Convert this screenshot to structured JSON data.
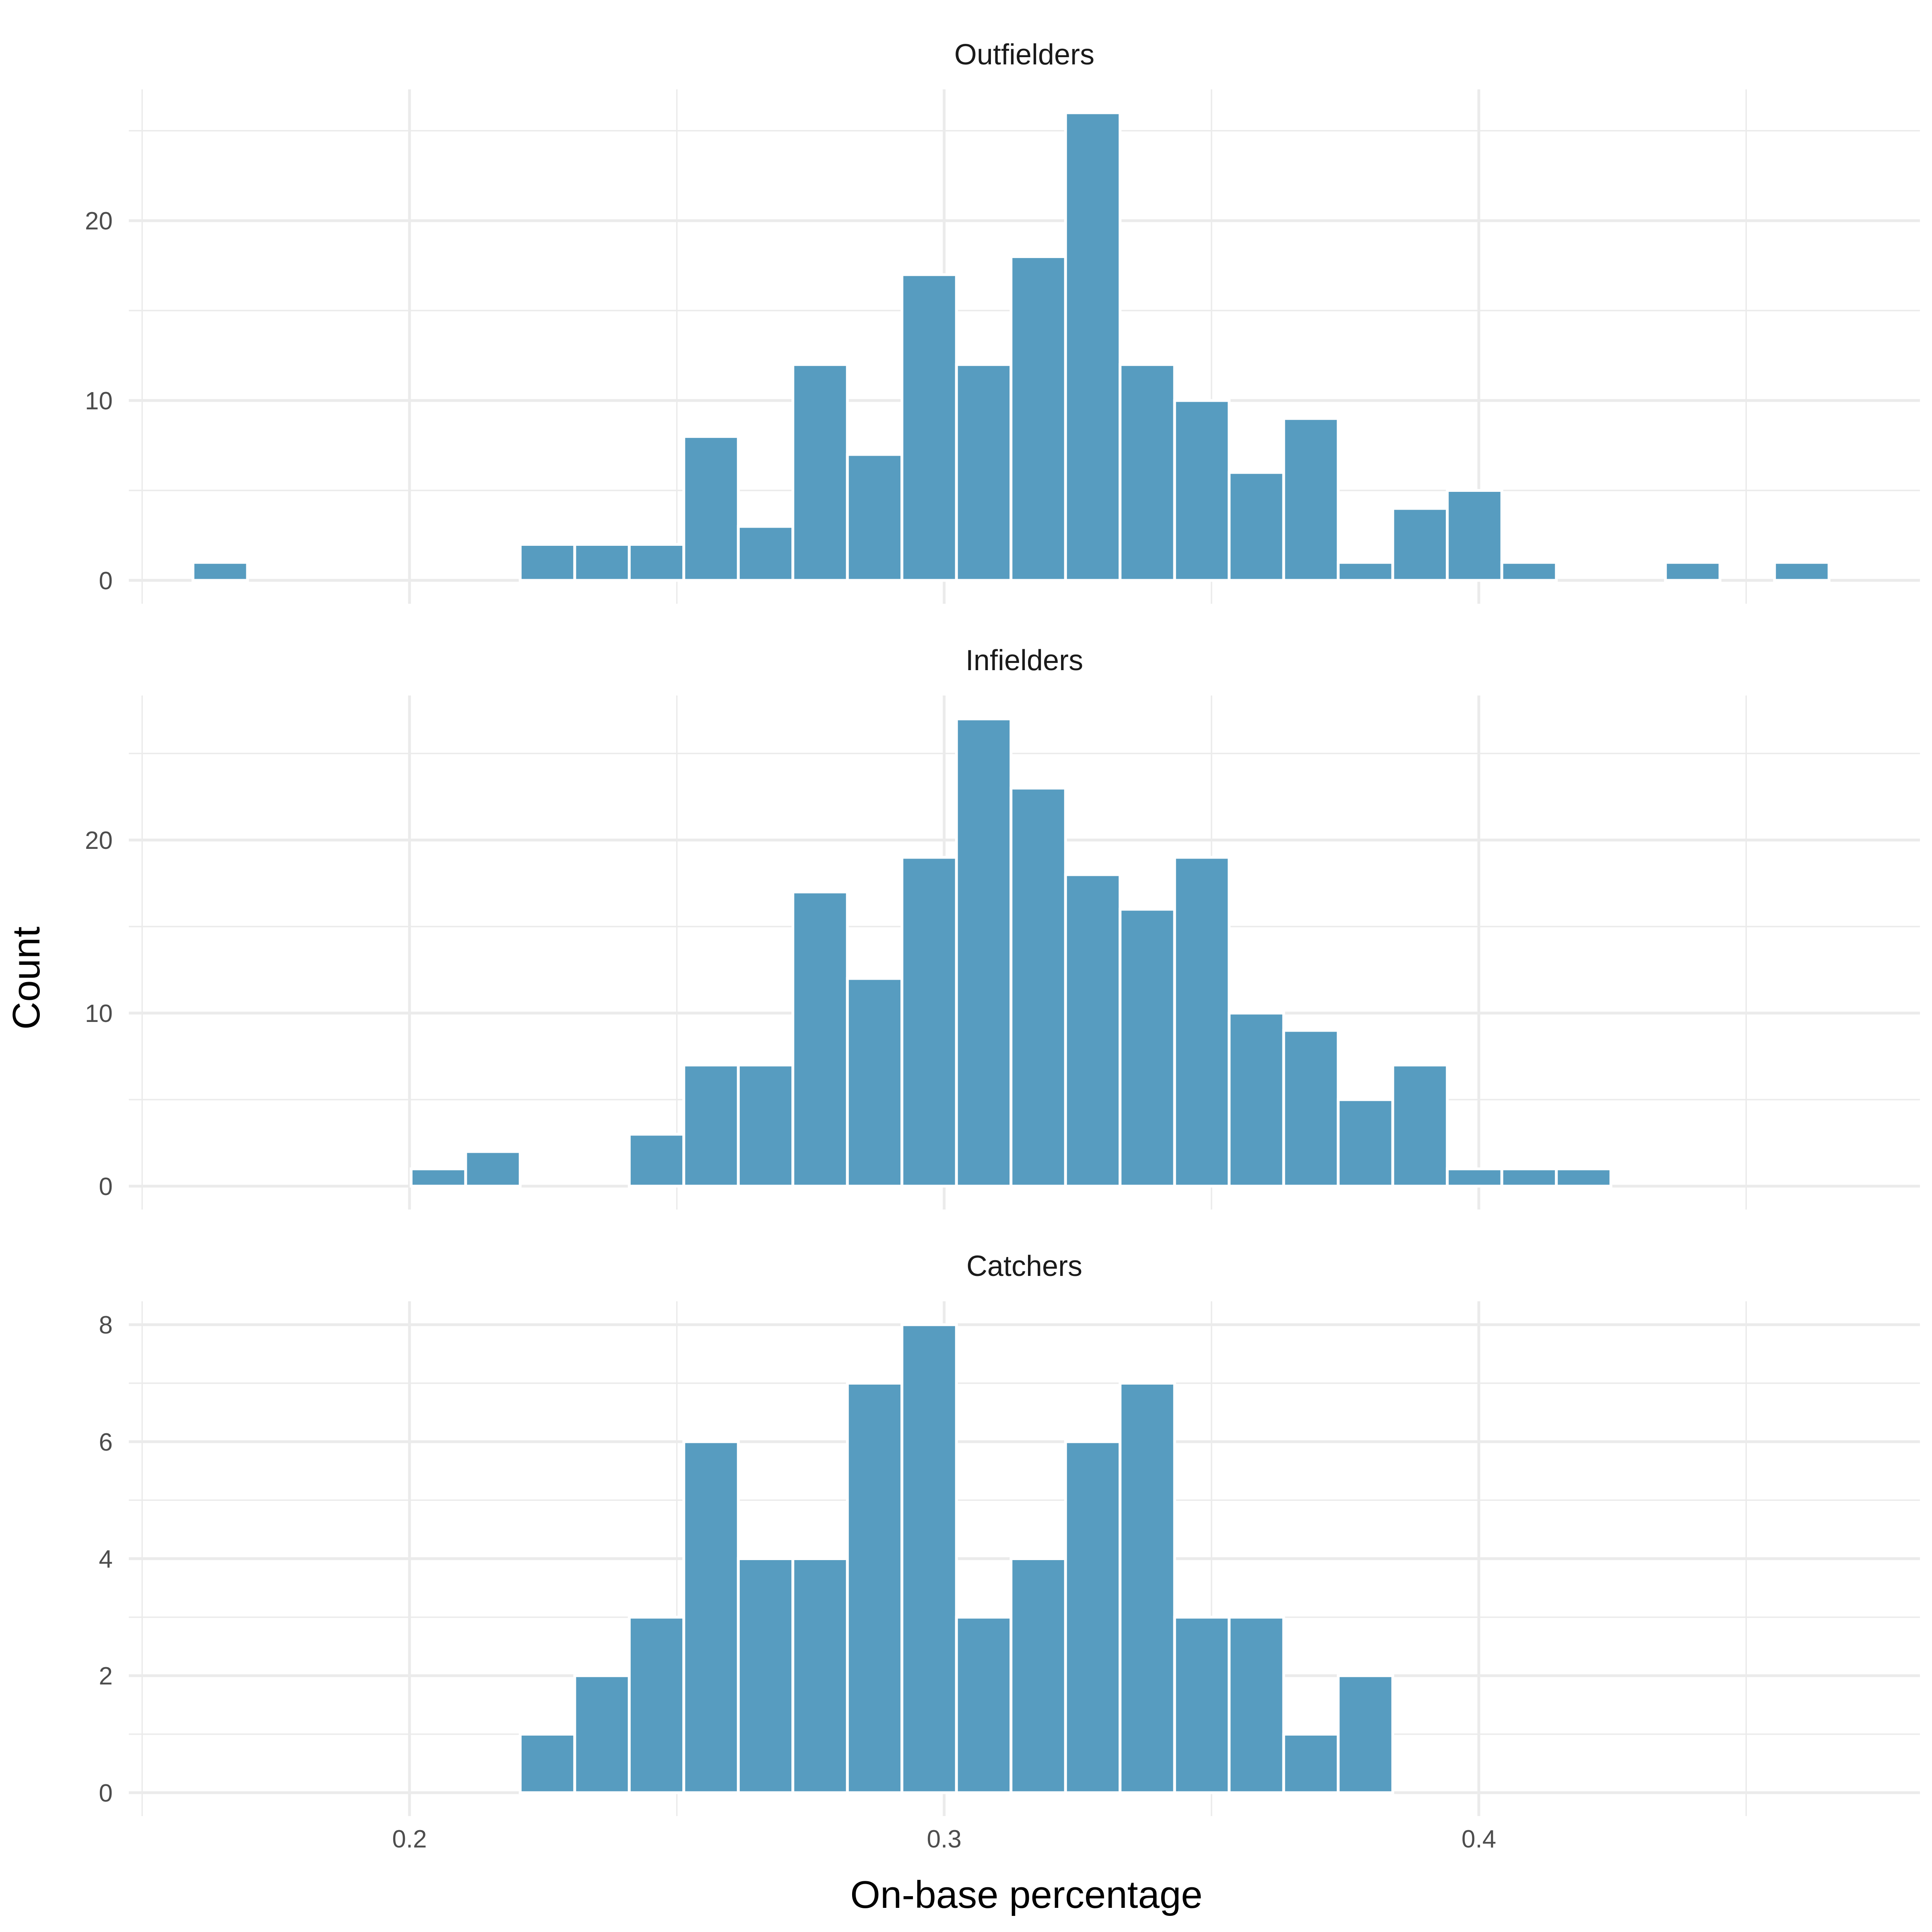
{
  "chart_data": {
    "type": "bar",
    "xlabel": "On-base percentage",
    "ylabel": "Count",
    "bar_color": "#579cc0",
    "x_ticks": [
      0.2,
      0.3,
      0.4
    ],
    "x_tick_labels": [
      "0.2",
      "0.3",
      "0.4"
    ],
    "xlim": [
      0.1475,
      0.4825
    ],
    "bin_width": 0.0102,
    "panels": [
      {
        "name": "Outfielders",
        "ylim": [
          -1.3,
          27.3
        ],
        "y_ticks": [
          0,
          10,
          20
        ],
        "y_tick_labels": [
          "0",
          "10",
          "20"
        ],
        "bin_starts": [
          0.1595,
          0.1697,
          0.1799,
          0.1901,
          0.2003,
          0.2105,
          0.2207,
          0.2309,
          0.2411,
          0.2513,
          0.2615,
          0.2717,
          0.2819,
          0.2921,
          0.3023,
          0.3125,
          0.3227,
          0.3329,
          0.3431,
          0.3533,
          0.3635,
          0.3737,
          0.3839,
          0.3941,
          0.4043,
          0.4145,
          0.4247,
          0.4349,
          0.4451,
          0.4553,
          0.4655
        ],
        "values": [
          1,
          0,
          0,
          0,
          0,
          0,
          2,
          2,
          2,
          8,
          3,
          12,
          7,
          17,
          12,
          18,
          26,
          12,
          10,
          6,
          9,
          1,
          4,
          5,
          1,
          0,
          0,
          1,
          0,
          1,
          0
        ]
      },
      {
        "name": "Infielders",
        "ylim": [
          -1.35,
          28.35
        ],
        "y_ticks": [
          0,
          10,
          20
        ],
        "y_tick_labels": [
          "0",
          "10",
          "20"
        ],
        "bin_starts": [
          0.1595,
          0.1697,
          0.1799,
          0.1901,
          0.2003,
          0.2105,
          0.2207,
          0.2309,
          0.2411,
          0.2513,
          0.2615,
          0.2717,
          0.2819,
          0.2921,
          0.3023,
          0.3125,
          0.3227,
          0.3329,
          0.3431,
          0.3533,
          0.3635,
          0.3737,
          0.3839,
          0.3941,
          0.4043,
          0.4145,
          0.4247,
          0.4349,
          0.4451,
          0.4553,
          0.4655
        ],
        "values": [
          0,
          0,
          0,
          0,
          1,
          2,
          0,
          0,
          3,
          7,
          7,
          17,
          12,
          19,
          27,
          23,
          18,
          16,
          19,
          10,
          9,
          5,
          7,
          1,
          1,
          1,
          0,
          0,
          0,
          0,
          0
        ]
      },
      {
        "name": "Catchers",
        "ylim": [
          -0.4,
          8.4
        ],
        "y_ticks": [
          0,
          2,
          4,
          6,
          8
        ],
        "y_tick_labels": [
          "0",
          "2",
          "4",
          "6",
          "8"
        ],
        "bin_starts": [
          0.1595,
          0.1697,
          0.1799,
          0.1901,
          0.2003,
          0.2105,
          0.2207,
          0.2309,
          0.2411,
          0.2513,
          0.2615,
          0.2717,
          0.2819,
          0.2921,
          0.3023,
          0.3125,
          0.3227,
          0.3329,
          0.3431,
          0.3533,
          0.3635,
          0.3737,
          0.3839,
          0.3941,
          0.4043,
          0.4145,
          0.4247,
          0.4349,
          0.4451,
          0.4553,
          0.4655
        ],
        "values": [
          0,
          0,
          0,
          0,
          0,
          0,
          1,
          2,
          3,
          6,
          4,
          4,
          7,
          8,
          3,
          4,
          6,
          7,
          3,
          3,
          1,
          2,
          0,
          0,
          0,
          0,
          0,
          0,
          0,
          0,
          0
        ]
      }
    ]
  }
}
